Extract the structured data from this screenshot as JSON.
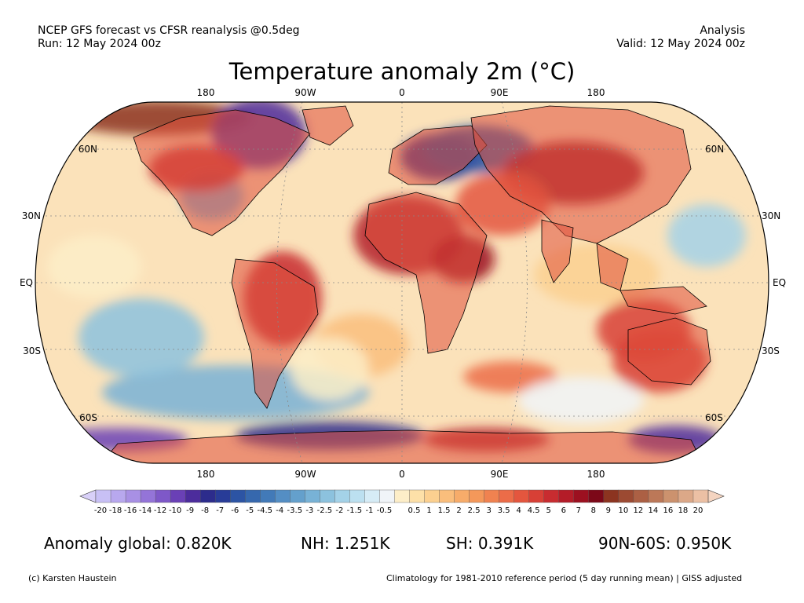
{
  "header": {
    "left_line1": "NCEP GFS forecast vs CFSR reanalysis @0.5deg",
    "left_line2": "Run: 12 May 2024 00z",
    "right_line1": "Analysis",
    "right_line2": "Valid: 12 May 2024 00z"
  },
  "title": "Temperature anomaly 2m (°C)",
  "map": {
    "projection": "Robinson",
    "top_lon_labels": [
      "180",
      "90W",
      "0",
      "90E",
      "180"
    ],
    "bottom_lon_labels": [
      "180",
      "90W",
      "0",
      "90E",
      "180"
    ],
    "left_lat_labels": [
      "60N",
      "30N",
      "EQ",
      "30S",
      "60S"
    ],
    "right_lat_labels": [
      "60N",
      "30N",
      "EQ",
      "30S",
      "60S"
    ]
  },
  "colorbar": {
    "labels": [
      "-20",
      "-18",
      "-16",
      "-14",
      "-12",
      "-10",
      "-9",
      "-8",
      "-7",
      "-6",
      "-5",
      "-4.5",
      "-4",
      "-3.5",
      "-3",
      "-2.5",
      "-2",
      "-1.5",
      "-1",
      "-0.5",
      "0.5",
      "1",
      "1.5",
      "2",
      "2.5",
      "3",
      "3.5",
      "4",
      "4.5",
      "5",
      "6",
      "7",
      "8",
      "9",
      "10",
      "12",
      "14",
      "16",
      "18",
      "20"
    ],
    "colors": [
      "#c8c0f5",
      "#b8a8ee",
      "#a890e4",
      "#9474d8",
      "#7e58c8",
      "#6a40b6",
      "#4c2c9c",
      "#2c2c8c",
      "#283c98",
      "#2c54a4",
      "#3668ae",
      "#427ab8",
      "#548ec4",
      "#64a0cc",
      "#78b2d6",
      "#8cc2de",
      "#a4d2e8",
      "#bce0f0",
      "#d6ecf6",
      "#f0f4f8",
      "#fdeec8",
      "#fde0a8",
      "#fcd090",
      "#fabe7c",
      "#f7ac6a",
      "#f4985a",
      "#f08250",
      "#ec6c48",
      "#e4563e",
      "#d84036",
      "#c82c30",
      "#b41c28",
      "#9c1020",
      "#7c0818",
      "#8c3420",
      "#9c4a32",
      "#ac6044",
      "#bc7858",
      "#cc926e",
      "#dca888",
      "#ecc0a4"
    ],
    "low_end_color": "#d8d0f8",
    "high_end_color": "#f4d4c0"
  },
  "stats": {
    "global": "Anomaly global: 0.820K",
    "nh": "NH: 1.251K",
    "sh": "SH: 0.391K",
    "arctic": "90N-60S: 0.950K"
  },
  "footer": {
    "credit": "(c) Karsten Haustein",
    "note": "Climatology for 1981-2010 reference period (5 day running mean) | GISS adjusted"
  }
}
